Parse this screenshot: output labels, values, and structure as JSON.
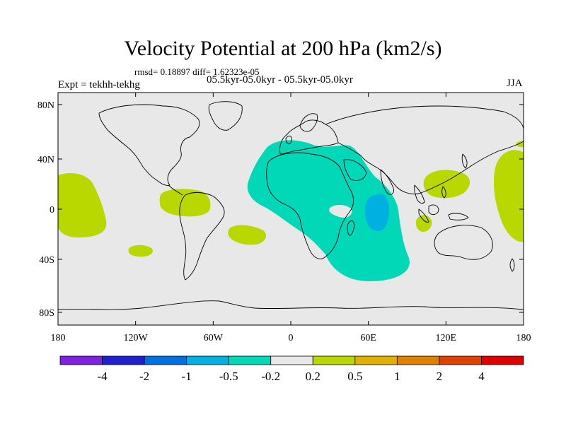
{
  "header": {
    "title": "Velocity Potential at 200 hPa (km2/s)",
    "stats": "rmsd= 0.18897 diff= 1.62323e-05",
    "experiment": "Expt = tekhh-tekhg",
    "subtitle": "05.5kyr-05.0kyr - 05.5kyr-05.0kyr",
    "season": "JJA"
  },
  "map": {
    "background_color": "#e8e8e8",
    "longitude_ticks": [
      "180",
      "120W",
      "60W",
      "0",
      "60E",
      "120E",
      "180"
    ],
    "latitude_ticks": [
      "80N",
      "40N",
      "0",
      "40S",
      "80S"
    ],
    "regions": [
      {
        "name": "africa-indian-ocean-negative",
        "level": "-0.5 to -0.2",
        "color": "#00d8b8"
      },
      {
        "name": "indian-ocean-core-negative",
        "level": "-1 to -0.5",
        "color": "#00b0e0"
      },
      {
        "name": "east-africa-neutral-hole",
        "level": "-0.2 to 0.2",
        "color": "#e8e8e8"
      },
      {
        "name": "central-pacific-positive",
        "level": "0.2 to 0.5",
        "color": "#b8d800"
      },
      {
        "name": "south-pacific-positive",
        "level": "0.2 to 0.5",
        "color": "#b8d800"
      },
      {
        "name": "northern-south-america-positive",
        "level": "0.2 to 0.5",
        "color": "#b8d800"
      },
      {
        "name": "south-atlantic-positive",
        "level": "0.2 to 0.5",
        "color": "#b8d800"
      },
      {
        "name": "western-pacific-positive",
        "level": "0.2 to 0.5",
        "color": "#b8d800"
      },
      {
        "name": "west-pacific-maritime-positive",
        "level": "0.2 to 0.5",
        "color": "#b8d800"
      },
      {
        "name": "dateline-positive",
        "level": "0.2 to 0.5",
        "color": "#b8d800"
      }
    ]
  },
  "colorbar": {
    "colors": [
      "#8020e0",
      "#2020d0",
      "#0070e0",
      "#00b0e0",
      "#00d8b8",
      "#e8e8e8",
      "#b8d800",
      "#e0b000",
      "#e08000",
      "#e04000",
      "#e00000"
    ],
    "labels": [
      "-4",
      "-2",
      "-1",
      "-0.5",
      "-0.2",
      "0.2",
      "0.5",
      "1",
      "2",
      "4"
    ]
  }
}
